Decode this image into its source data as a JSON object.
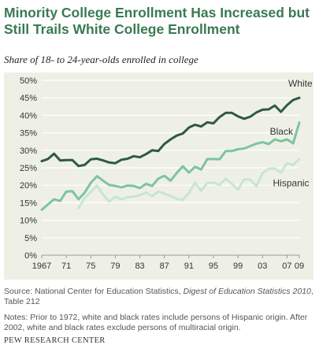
{
  "header": {
    "title": "Minority College Enrollment Has Increased but Still Trails White College Enrollment",
    "subtitle": "Share of 18- to 24-year-olds enrolled in college"
  },
  "footer": {
    "source_prefix": "Source: National Center for Education Statistics, ",
    "source_italic": "Digest of Education Statistics 2010",
    "source_suffix": ", Table 212",
    "notes": "Notes: Prior to 1972, white and black rates include persons of Hispanic origin. After 2002, white and black rates exclude persons of multiracial origin.",
    "credit": "PEW RESEARCH CENTER"
  },
  "chart_data": {
    "type": "line",
    "title": "Minority College Enrollment Has Increased but Still Trails White College Enrollment",
    "subtitle": "Share of 18- to 24-year-olds enrolled in college",
    "xlim": [
      1967,
      2009
    ],
    "ylim": [
      0,
      50
    ],
    "x_ticks": [
      1967,
      1971,
      1975,
      1979,
      1983,
      1987,
      1991,
      1995,
      1999,
      2003,
      2007,
      2009
    ],
    "x_tick_labels": [
      "1967",
      "71",
      "75",
      "79",
      "83",
      "87",
      "91",
      "95",
      "99",
      "03",
      "07",
      "09"
    ],
    "y_ticks": [
      0,
      5,
      10,
      15,
      20,
      25,
      30,
      35,
      40,
      45,
      50
    ],
    "y_tick_labels": [
      "0%",
      "5%",
      "10%",
      "15%",
      "20%",
      "25%",
      "30%",
      "35%",
      "40%",
      "45%",
      "50%"
    ],
    "grid": "horizontal",
    "series": [
      {
        "name": "White",
        "color": "#2f5a3f",
        "label_year": 2007.2,
        "label_value": 48.2,
        "points": [
          [
            1967,
            26.9
          ],
          [
            1968,
            27.5
          ],
          [
            1969,
            29.0
          ],
          [
            1970,
            27.1
          ],
          [
            1971,
            27.2
          ],
          [
            1972,
            27.2
          ],
          [
            1973,
            25.5
          ],
          [
            1974,
            25.8
          ],
          [
            1975,
            27.4
          ],
          [
            1976,
            27.6
          ],
          [
            1977,
            27.1
          ],
          [
            1978,
            26.5
          ],
          [
            1979,
            26.3
          ],
          [
            1980,
            27.3
          ],
          [
            1981,
            27.6
          ],
          [
            1982,
            28.3
          ],
          [
            1983,
            28.0
          ],
          [
            1984,
            28.9
          ],
          [
            1985,
            30.0
          ],
          [
            1986,
            29.8
          ],
          [
            1987,
            31.8
          ],
          [
            1988,
            33.1
          ],
          [
            1989,
            34.2
          ],
          [
            1990,
            34.8
          ],
          [
            1991,
            36.5
          ],
          [
            1992,
            37.3
          ],
          [
            1993,
            36.8
          ],
          [
            1994,
            38.0
          ],
          [
            1995,
            37.7
          ],
          [
            1996,
            39.5
          ],
          [
            1997,
            40.7
          ],
          [
            1998,
            40.7
          ],
          [
            1999,
            39.7
          ],
          [
            2000,
            39.0
          ],
          [
            2001,
            39.6
          ],
          [
            2002,
            40.8
          ],
          [
            2003,
            41.6
          ],
          [
            2004,
            41.7
          ],
          [
            2005,
            42.8
          ],
          [
            2006,
            41.0
          ],
          [
            2007,
            42.9
          ],
          [
            2008,
            44.4
          ],
          [
            2009,
            45.0
          ]
        ]
      },
      {
        "name": "Black",
        "color": "#7cc4a0",
        "label_year": 2004.2,
        "label_value": 34.5,
        "points": [
          [
            1967,
            13.0
          ],
          [
            1968,
            14.5
          ],
          [
            1969,
            16.0
          ],
          [
            1970,
            15.5
          ],
          [
            1971,
            18.2
          ],
          [
            1972,
            18.3
          ],
          [
            1973,
            16.0
          ],
          [
            1974,
            17.9
          ],
          [
            1975,
            20.7
          ],
          [
            1976,
            22.6
          ],
          [
            1977,
            21.3
          ],
          [
            1978,
            20.1
          ],
          [
            1979,
            19.8
          ],
          [
            1980,
            19.4
          ],
          [
            1981,
            19.9
          ],
          [
            1982,
            19.8
          ],
          [
            1983,
            19.2
          ],
          [
            1984,
            20.4
          ],
          [
            1985,
            19.8
          ],
          [
            1986,
            21.9
          ],
          [
            1987,
            22.7
          ],
          [
            1988,
            21.3
          ],
          [
            1989,
            23.5
          ],
          [
            1990,
            25.4
          ],
          [
            1991,
            23.6
          ],
          [
            1992,
            25.3
          ],
          [
            1993,
            24.5
          ],
          [
            1994,
            27.5
          ],
          [
            1995,
            27.5
          ],
          [
            1996,
            27.4
          ],
          [
            1997,
            29.8
          ],
          [
            1998,
            29.8
          ],
          [
            1999,
            30.3
          ],
          [
            2000,
            30.5
          ],
          [
            2001,
            31.2
          ],
          [
            2002,
            31.9
          ],
          [
            2003,
            32.3
          ],
          [
            2004,
            31.8
          ],
          [
            2005,
            33.1
          ],
          [
            2006,
            32.6
          ],
          [
            2007,
            33.1
          ],
          [
            2008,
            32.0
          ],
          [
            2009,
            37.9
          ]
        ]
      },
      {
        "name": "Hispanic",
        "color": "#c7e5d3",
        "label_year": 2004.7,
        "label_value": 19.7,
        "points": [
          [
            1973,
            13.5
          ],
          [
            1974,
            16.3
          ],
          [
            1975,
            18.1
          ],
          [
            1976,
            19.9
          ],
          [
            1977,
            17.3
          ],
          [
            1978,
            15.3
          ],
          [
            1979,
            16.7
          ],
          [
            1980,
            16.0
          ],
          [
            1981,
            16.6
          ],
          [
            1982,
            16.7
          ],
          [
            1983,
            17.2
          ],
          [
            1984,
            17.9
          ],
          [
            1985,
            16.9
          ],
          [
            1986,
            18.2
          ],
          [
            1987,
            17.6
          ],
          [
            1988,
            17.0
          ],
          [
            1989,
            16.1
          ],
          [
            1990,
            15.8
          ],
          [
            1991,
            17.8
          ],
          [
            1992,
            20.7
          ],
          [
            1993,
            18.4
          ],
          [
            1994,
            20.7
          ],
          [
            1995,
            20.7
          ],
          [
            1996,
            20.1
          ],
          [
            1997,
            21.9
          ],
          [
            1998,
            20.4
          ],
          [
            1999,
            18.7
          ],
          [
            2000,
            21.7
          ],
          [
            2001,
            21.7
          ],
          [
            2002,
            19.7
          ],
          [
            2003,
            23.5
          ],
          [
            2004,
            24.7
          ],
          [
            2005,
            24.8
          ],
          [
            2006,
            23.6
          ],
          [
            2007,
            26.3
          ],
          [
            2008,
            25.8
          ],
          [
            2009,
            27.5
          ]
        ]
      }
    ]
  }
}
